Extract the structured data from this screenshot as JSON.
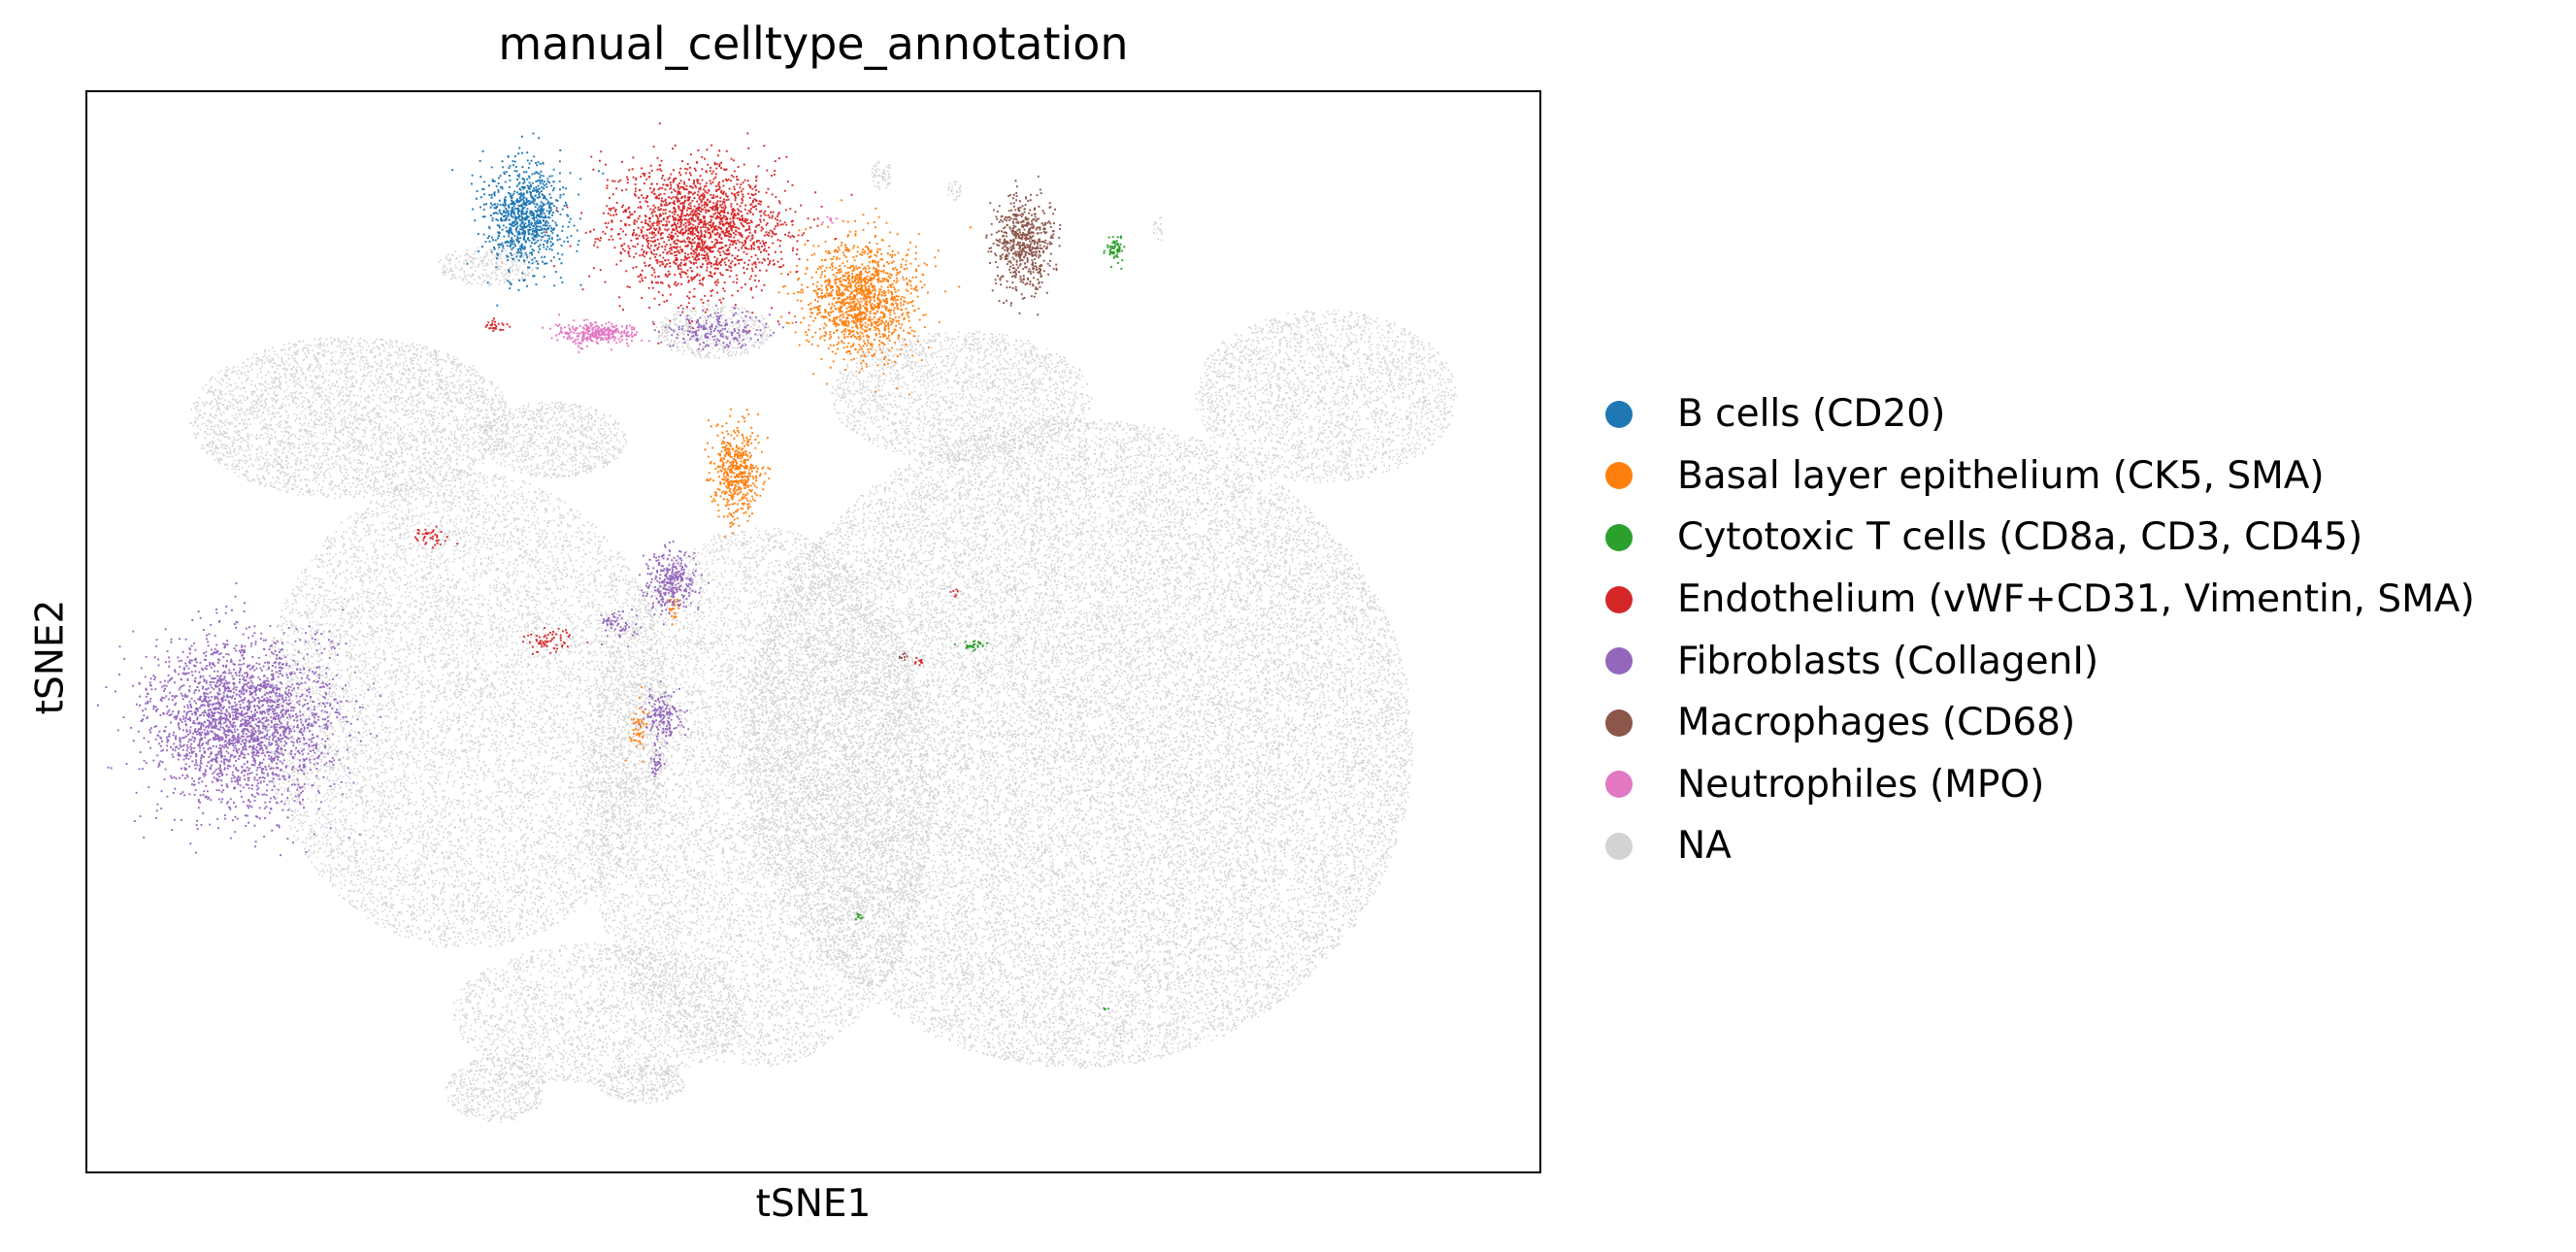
{
  "chart_data": {
    "type": "scatter",
    "title": "manual_celltype_annotation",
    "xlabel": "tSNE1",
    "ylabel": "tSNE2",
    "xticks": [],
    "yticks": [],
    "grid": false,
    "legend_position": "right-outside",
    "xlim": [
      0,
      100
    ],
    "ylim": [
      0,
      100
    ],
    "series": [
      {
        "name": "B cells (CD20)",
        "color": "#1f77b4",
        "clusters": [
          {
            "x": 30.0,
            "y": 88.5,
            "rx": 2.8,
            "ry": 4.8,
            "n": 900
          }
        ]
      },
      {
        "name": "Basal layer epithelium (CK5, SMA)",
        "color": "#ff7f0e",
        "clusters": [
          {
            "x": 53.0,
            "y": 81.0,
            "rx": 3.8,
            "ry": 5.2,
            "n": 1300
          },
          {
            "x": 44.5,
            "y": 65.0,
            "rx": 1.7,
            "ry": 4.2,
            "n": 500
          },
          {
            "x": 37.8,
            "y": 41.5,
            "rx": 0.6,
            "ry": 2.2,
            "n": 50
          },
          {
            "x": 40.2,
            "y": 52.5,
            "rx": 0.5,
            "ry": 1.3,
            "n": 25
          }
        ]
      },
      {
        "name": "Cytotoxic T cells (CD8a, CD3, CD45)",
        "color": "#2ca02c",
        "clusters": [
          {
            "x": 70.5,
            "y": 85.5,
            "rx": 0.7,
            "ry": 1.4,
            "n": 60
          },
          {
            "x": 60.8,
            "y": 49.0,
            "rx": 0.9,
            "ry": 0.4,
            "n": 30
          },
          {
            "x": 53.0,
            "y": 24.0,
            "rx": 0.3,
            "ry": 0.3,
            "n": 10
          },
          {
            "x": 69.8,
            "y": 15.5,
            "rx": 0.2,
            "ry": 0.2,
            "n": 5
          }
        ]
      },
      {
        "name": "Endothelium (vWF+CD31, Vimentin, SMA)",
        "color": "#d62728",
        "clusters": [
          {
            "x": 42.0,
            "y": 87.5,
            "rx": 6.0,
            "ry": 5.8,
            "n": 1800
          },
          {
            "x": 28.0,
            "y": 78.5,
            "rx": 0.7,
            "ry": 0.7,
            "n": 30
          },
          {
            "x": 23.5,
            "y": 59.0,
            "rx": 1.3,
            "ry": 0.9,
            "n": 40
          },
          {
            "x": 31.5,
            "y": 49.5,
            "rx": 1.9,
            "ry": 1.0,
            "n": 60
          },
          {
            "x": 57.0,
            "y": 47.5,
            "rx": 0.4,
            "ry": 0.4,
            "n": 10
          },
          {
            "x": 59.5,
            "y": 54.0,
            "rx": 0.4,
            "ry": 0.4,
            "n": 6
          }
        ]
      },
      {
        "name": "Fibroblasts (CollagenI)",
        "color": "#9467bd",
        "clusters": [
          {
            "x": 10.5,
            "y": 42.0,
            "rx": 6.2,
            "ry": 7.8,
            "n": 2500
          },
          {
            "x": 40.0,
            "y": 55.0,
            "rx": 1.8,
            "ry": 2.8,
            "n": 300
          },
          {
            "x": 39.5,
            "y": 42.5,
            "rx": 1.2,
            "ry": 2.5,
            "n": 150
          },
          {
            "x": 36.5,
            "y": 51.0,
            "rx": 1.4,
            "ry": 1.4,
            "n": 60
          },
          {
            "x": 39.0,
            "y": 38.0,
            "rx": 0.5,
            "ry": 1.0,
            "n": 30
          },
          {
            "x": 43.0,
            "y": 78.0,
            "rx": 3.5,
            "ry": 1.8,
            "n": 200
          }
        ]
      },
      {
        "name": "Macrophages (CD68)",
        "color": "#8c564b",
        "clusters": [
          {
            "x": 64.2,
            "y": 86.0,
            "rx": 2.1,
            "ry": 4.2,
            "n": 600
          },
          {
            "x": 56.0,
            "y": 48.0,
            "rx": 0.4,
            "ry": 0.3,
            "n": 8
          }
        ]
      },
      {
        "name": "Neutrophiles (MPO)",
        "color": "#e377c2",
        "clusters": [
          {
            "x": 35.0,
            "y": 77.8,
            "rx": 2.7,
            "ry": 1.0,
            "n": 300
          },
          {
            "x": 51.0,
            "y": 88.3,
            "rx": 0.6,
            "ry": 0.3,
            "n": 8
          }
        ]
      },
      {
        "name": "NA",
        "color": "#d3d3d3",
        "clusters": [
          {
            "x": 68.0,
            "y": 40.0,
            "rx": 23.0,
            "ry": 30.0,
            "n": 26000
          },
          {
            "x": 46.0,
            "y": 35.0,
            "rx": 12.0,
            "ry": 25.0,
            "n": 9000
          },
          {
            "x": 26.0,
            "y": 43.0,
            "rx": 14.0,
            "ry": 22.0,
            "n": 9000
          },
          {
            "x": 18.0,
            "y": 70.0,
            "rx": 11.0,
            "ry": 7.5,
            "n": 3500
          },
          {
            "x": 35.0,
            "y": 15.0,
            "rx": 10.0,
            "ry": 6.5,
            "n": 2000
          },
          {
            "x": 85.0,
            "y": 72.0,
            "rx": 9.0,
            "ry": 8.0,
            "n": 2500
          },
          {
            "x": 60.0,
            "y": 72.0,
            "rx": 9.0,
            "ry": 6.0,
            "n": 2000
          },
          {
            "x": 32.0,
            "y": 68.0,
            "rx": 5.0,
            "ry": 3.5,
            "n": 800
          },
          {
            "x": 43.0,
            "y": 78.0,
            "rx": 4.0,
            "ry": 2.5,
            "n": 500
          },
          {
            "x": 27.5,
            "y": 84.0,
            "rx": 3.5,
            "ry": 1.8,
            "n": 300
          },
          {
            "x": 54.5,
            "y": 92.5,
            "rx": 0.7,
            "ry": 1.5,
            "n": 60
          },
          {
            "x": 59.5,
            "y": 91.0,
            "rx": 0.5,
            "ry": 1.0,
            "n": 30
          },
          {
            "x": 73.5,
            "y": 87.5,
            "rx": 0.4,
            "ry": 1.3,
            "n": 20
          },
          {
            "x": 28.0,
            "y": 8.0,
            "rx": 3.5,
            "ry": 3.0,
            "n": 500
          },
          {
            "x": 38.0,
            "y": 8.5,
            "rx": 3.0,
            "ry": 1.8,
            "n": 300
          }
        ]
      }
    ]
  }
}
